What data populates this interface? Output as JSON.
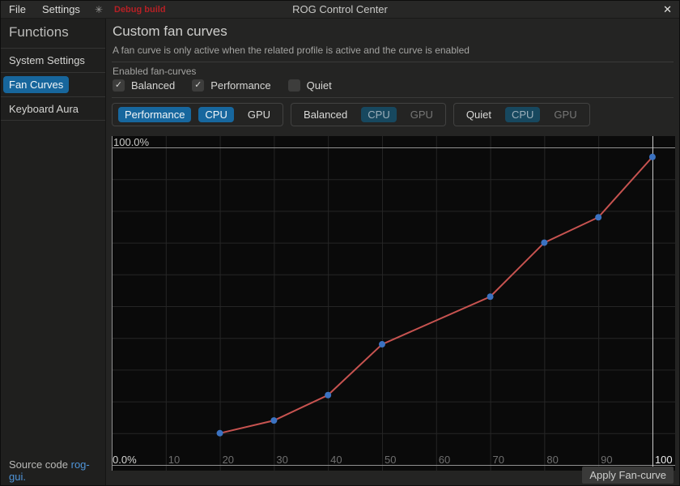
{
  "titlebar": {
    "menu": [
      {
        "label": "File"
      },
      {
        "label": "Settings"
      }
    ],
    "debug_label": "Debug build",
    "title": "ROG Control Center"
  },
  "icons": {
    "theme_sun": "✳",
    "close": "✕",
    "check": "✓"
  },
  "sidebar": {
    "header": "Functions",
    "items": [
      {
        "label": "System Settings",
        "active": false
      },
      {
        "label": "Fan Curves",
        "active": true
      },
      {
        "label": "Keyboard Aura",
        "active": false
      }
    ],
    "footer": {
      "prefix": "Source code ",
      "link": "rog-gui."
    }
  },
  "main": {
    "title": "Custom fan curves",
    "subtitle": "A fan curve is only active when the related profile is active and the curve is enabled",
    "enabled_label": "Enabled fan-curves",
    "checkboxes": [
      {
        "label": "Balanced",
        "checked": true
      },
      {
        "label": "Performance",
        "checked": true
      },
      {
        "label": "Quiet",
        "checked": false
      }
    ],
    "profile_groups": [
      {
        "name": "Performance",
        "active": true,
        "fans": [
          {
            "label": "CPU",
            "selected": true
          },
          {
            "label": "GPU",
            "selected": false
          }
        ]
      },
      {
        "name": "Balanced",
        "active": false,
        "fans": [
          {
            "label": "CPU",
            "selected": true
          },
          {
            "label": "GPU",
            "selected": false
          }
        ]
      },
      {
        "name": "Quiet",
        "active": false,
        "fans": [
          {
            "label": "CPU",
            "selected": true
          },
          {
            "label": "GPU",
            "selected": false
          }
        ]
      }
    ],
    "apply_button": "Apply Fan-curve"
  },
  "chart_data": {
    "type": "line",
    "title": "",
    "series": [
      {
        "name": "Performance CPU fan curve",
        "x": [
          20,
          30,
          40,
          50,
          70,
          80,
          90,
          100
        ],
        "y": [
          10,
          14,
          22,
          38,
          53,
          70,
          78,
          97
        ]
      }
    ],
    "x_ticks": [
      10,
      20,
      30,
      40,
      50,
      60,
      70,
      80,
      90,
      100
    ],
    "highlighted_x_tick": 100,
    "y_tick_step": 10,
    "xlim": [
      0,
      104.2
    ],
    "ylim": [
      0,
      100
    ],
    "y_label_top": "100.0%",
    "y_label_bottom": "0.0%",
    "grid": true,
    "legend": "none",
    "colors": {
      "line": "#c75350",
      "point": "#3b72c1",
      "axis_bright": "#909090",
      "highlight_line": "#cfcfcf",
      "grid_dim": "#262626",
      "tick_text": "#6f6f6f",
      "tick_text_bright": "#eaeaea",
      "bg": "#0a0a0a"
    }
  },
  "colors": {
    "accent": "#17679e",
    "accent_dim": "#17485f",
    "debug_red": "#b52025",
    "link_blue": "#4f94d8"
  }
}
